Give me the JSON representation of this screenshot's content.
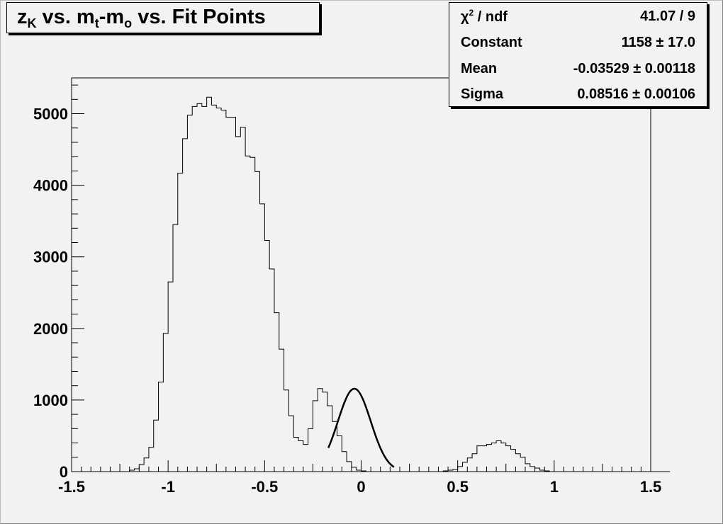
{
  "title": {
    "z": "z",
    "k": "K",
    "mid": " vs. m",
    "t": "t",
    "dash": "-m",
    "o": "o",
    "tail": " vs. Fit Points"
  },
  "stats": {
    "chi2_label": "χ",
    "chi2_sup": "2",
    "chi2_suffix": " / ndf",
    "chi2_value": "41.07 / 9",
    "constant_label": "Constant",
    "constant_value": "1158 ± 17.0",
    "mean_label": "Mean",
    "mean_value": "-0.03529 ± 0.00118",
    "sigma_label": "Sigma",
    "sigma_value": "0.08516 ± 0.00106"
  },
  "colors": {
    "background": "#f2f2f2",
    "histogram": "#000000",
    "fit": "#000000"
  },
  "chart_data": {
    "type": "histogram",
    "title": "zK vs. mt-mo vs. Fit Points",
    "xlim": [
      -1.5,
      1.5
    ],
    "ylim": [
      0,
      5500
    ],
    "x_ticks": [
      -1.5,
      -1,
      -0.5,
      0,
      0.5,
      1,
      1.5
    ],
    "x_tick_labels": [
      "-1.5",
      "-1",
      "-0.5",
      "0",
      "0.5",
      "1",
      "1.5"
    ],
    "y_ticks": [
      0,
      1000,
      2000,
      3000,
      4000,
      5000
    ],
    "y_tick_labels": [
      "0",
      "1000",
      "2000",
      "3000",
      "4000",
      "5000"
    ],
    "grid": false,
    "bin_start": -1.5,
    "bin_width": 0.025,
    "bin_values": [
      0,
      0,
      0,
      0,
      0,
      0,
      0,
      0,
      0,
      0,
      0,
      0,
      20,
      40,
      100,
      190,
      340,
      720,
      1250,
      1930,
      2650,
      3450,
      4170,
      4650,
      4980,
      5100,
      5140,
      5100,
      5230,
      5120,
      5080,
      5050,
      4950,
      4950,
      4680,
      4810,
      4410,
      4390,
      4190,
      3740,
      3230,
      2830,
      2220,
      1710,
      1140,
      780,
      480,
      430,
      380,
      600,
      990,
      1160,
      1110,
      920,
      700,
      500,
      280,
      140,
      60,
      20,
      10,
      0,
      0,
      0,
      0,
      0,
      0,
      0,
      0,
      0,
      0,
      0,
      0,
      0,
      0,
      0,
      0,
      10,
      20,
      30,
      70,
      130,
      190,
      250,
      360,
      360,
      380,
      400,
      430,
      400,
      360,
      310,
      250,
      200,
      110,
      70,
      50,
      20,
      10,
      0,
      0,
      0,
      0,
      0,
      0,
      0,
      0,
      0,
      0,
      0,
      0,
      0,
      0,
      0,
      0,
      0,
      0,
      0,
      0,
      0,
      0,
      0,
      0,
      0
    ],
    "fit": {
      "function": "gaussian",
      "constant": 1158,
      "mean": -0.03529,
      "sigma": 0.08516,
      "range": [
        -0.17,
        0.17
      ]
    }
  }
}
